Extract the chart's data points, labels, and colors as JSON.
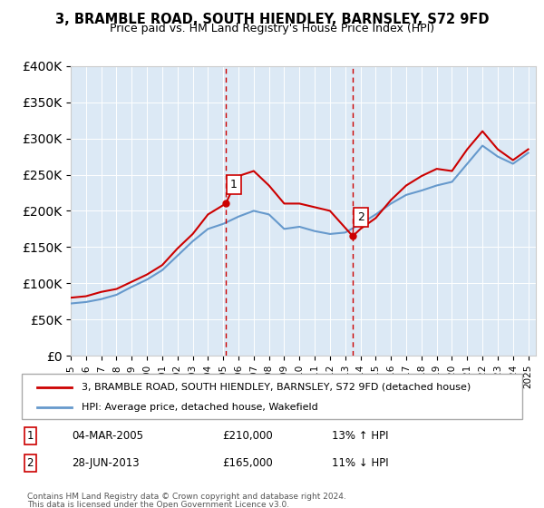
{
  "title": "3, BRAMBLE ROAD, SOUTH HIENDLEY, BARNSLEY, S72 9FD",
  "subtitle": "Price paid vs. HM Land Registry's House Price Index (HPI)",
  "legend_line1": "3, BRAMBLE ROAD, SOUTH HIENDLEY, BARNSLEY, S72 9FD (detached house)",
  "legend_line2": "HPI: Average price, detached house, Wakefield",
  "sale1_label": "1",
  "sale1_date": "04-MAR-2005",
  "sale1_price": "£210,000",
  "sale1_hpi": "13% ↑ HPI",
  "sale2_label": "2",
  "sale2_date": "28-JUN-2013",
  "sale2_price": "£165,000",
  "sale2_hpi": "11% ↓ HPI",
  "footnote1": "Contains HM Land Registry data © Crown copyright and database right 2024.",
  "footnote2": "This data is licensed under the Open Government Licence v3.0.",
  "sale1_x": 2005.17,
  "sale1_y": 210000,
  "sale2_x": 2013.49,
  "sale2_y": 165000,
  "chart_bg": "#dce9f5",
  "red_color": "#cc0000",
  "blue_color": "#6699cc",
  "ylim": [
    0,
    400000
  ],
  "xlim": [
    1995,
    2025.5
  ],
  "hpi_x": [
    1995,
    1996,
    1997,
    1998,
    1999,
    2000,
    2001,
    2002,
    2003,
    2004,
    2005,
    2006,
    2007,
    2008,
    2009,
    2010,
    2011,
    2012,
    2013,
    2014,
    2015,
    2016,
    2017,
    2018,
    2019,
    2020,
    2021,
    2022,
    2023,
    2024,
    2025
  ],
  "hpi_y": [
    72000,
    74000,
    78000,
    84000,
    95000,
    105000,
    118000,
    138000,
    158000,
    175000,
    182000,
    192000,
    200000,
    195000,
    175000,
    178000,
    172000,
    168000,
    170000,
    182000,
    195000,
    210000,
    222000,
    228000,
    235000,
    240000,
    265000,
    290000,
    275000,
    265000,
    280000
  ],
  "red_x": [
    1995,
    1996,
    1997,
    1998,
    1999,
    2000,
    2001,
    2002,
    2003,
    2004,
    2005.17,
    2006,
    2007,
    2008,
    2009,
    2010,
    2011,
    2012,
    2013.49,
    2014,
    2015,
    2016,
    2017,
    2018,
    2019,
    2020,
    2021,
    2022,
    2023,
    2024,
    2025
  ],
  "red_y": [
    80000,
    82000,
    88000,
    92000,
    102000,
    112000,
    125000,
    148000,
    168000,
    195000,
    210000,
    248000,
    255000,
    235000,
    210000,
    210000,
    205000,
    200000,
    165000,
    175000,
    190000,
    215000,
    235000,
    248000,
    258000,
    255000,
    285000,
    310000,
    285000,
    270000,
    285000
  ]
}
